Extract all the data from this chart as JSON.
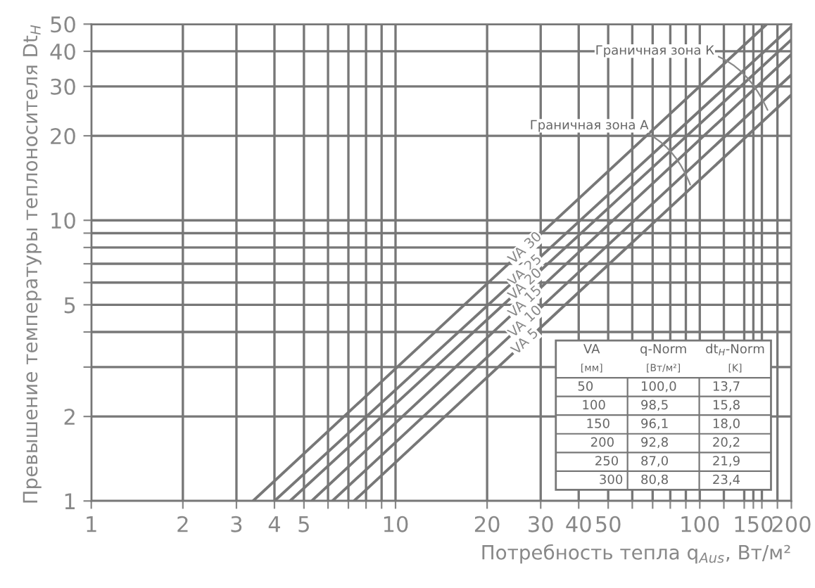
{
  "chart_data": [
    {
      "type": "line",
      "log": "xy",
      "grid": true,
      "marker": "none",
      "line_style": "solid",
      "xlabel": "Потребность тепла q$_{Aus}$, Вт/м²",
      "ylabel": "Превышение температуры теплоносителя Dt$_{H}$",
      "xlim": [
        1,
        200
      ],
      "ylim": [
        1,
        50
      ],
      "xticks": [
        1,
        2,
        3,
        4,
        5,
        {
          "value": 6,
          "label": null
        },
        {
          "value": 7,
          "label": null
        },
        {
          "value": 8,
          "label": null
        },
        {
          "value": 9,
          "label": null
        },
        10,
        20,
        30,
        40,
        50,
        {
          "value": 60,
          "label": null
        },
        {
          "value": 70,
          "label": null
        },
        {
          "value": 80,
          "label": null
        },
        {
          "value": 90,
          "label": null
        },
        100,
        {
          "value": 120,
          "label": null
        },
        {
          "value": 140,
          "label": null
        },
        150,
        {
          "value": 160,
          "label": null
        },
        {
          "value": 180,
          "label": null
        },
        200
      ],
      "yticks": [
        1,
        2,
        {
          "value": 3,
          "label": null
        },
        {
          "value": 4,
          "label": null
        },
        5,
        {
          "value": 6,
          "label": null
        },
        {
          "value": 7,
          "label": null
        },
        {
          "value": 8,
          "label": null
        },
        {
          "value": 9,
          "label": null
        },
        10,
        20,
        30,
        40,
        50
      ],
      "series": [
        {
          "name": "VA 30",
          "color": "#777777",
          "x": [
            3.4,
            166
          ],
          "values": [
            1,
            50
          ]
        },
        {
          "name": "VA 25",
          "color": "#777777",
          "x": [
            4.0,
            200
          ],
          "values": [
            1,
            49
          ]
        },
        {
          "name": "VA 20",
          "color": "#777777",
          "x": [
            4.5,
            200
          ],
          "values": [
            1,
            44
          ]
        },
        {
          "name": "VA 15",
          "color": "#777777",
          "x": [
            5.3,
            200
          ],
          "values": [
            1,
            39
          ]
        },
        {
          "name": "VA 10",
          "color": "#777777",
          "x": [
            6.2,
            200
          ],
          "values": [
            1,
            33
          ]
        },
        {
          "name": "VA 5",
          "color": "#777777",
          "x": [
            7.3,
            200
          ],
          "values": [
            1,
            28
          ]
        }
      ],
      "annotations": [
        {
          "text": "Граничная зона А",
          "x": 94,
          "y": 13
        },
        {
          "text": "Граничная зона К",
          "x": 169,
          "y": 24
        }
      ]
    },
    {
      "type": "other",
      "annotations": [
        "VA",
        "q-Norm",
        "dt$_{H}$-Norm",
        "[мм]",
        "[Вт/м²]",
        "[K]",
        "50",
        "100,0",
        "13,7",
        "100",
        "98,5",
        "15,8",
        "150",
        "96,1",
        "18,0",
        "200",
        "92,8",
        "20,2",
        "250",
        "87,0",
        "21,9",
        "300",
        "80,8",
        "23,4"
      ]
    }
  ]
}
